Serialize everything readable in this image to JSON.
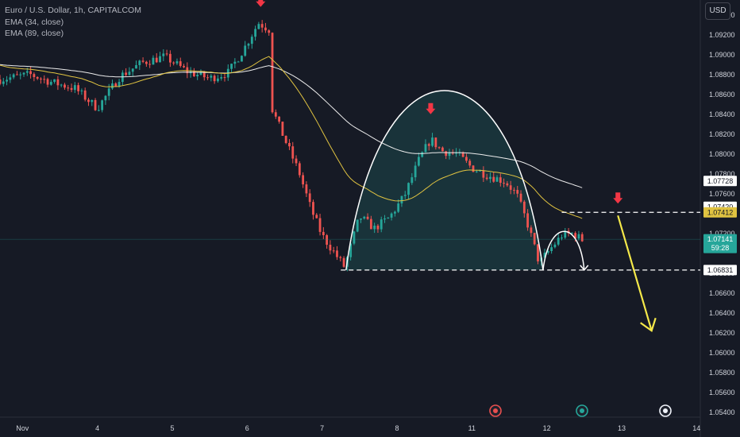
{
  "legend": {
    "title": "Euro / U.S. Dollar, 1h, CAPITALCOM",
    "ema1": "EMA (34, close)",
    "ema2": "EMA (89, close)"
  },
  "currency_button": "USD",
  "colors": {
    "up": "#26a69a",
    "down": "#ef5350",
    "ema34": "#e0c341",
    "ema89": "#ececec",
    "arrow_marker": "#f23645",
    "projection": "#f5e94a",
    "pattern_fill": "#1a3a40",
    "last_price": "#26a69a"
  },
  "price_tags": {
    "ema89": "1.07728",
    "ema34": "1.07420",
    "resistance": "1.07412",
    "last_price": "1.07141",
    "countdown": "59:28",
    "support": "1.06831"
  },
  "chart_data": {
    "type": "candlestick",
    "title": "Euro / U.S. Dollar, 1h, CAPITALCOM",
    "currency": "USD",
    "y_ticks": [
      "1.09400",
      "1.09200",
      "1.09000",
      "1.08800",
      "1.08600",
      "1.08400",
      "1.08200",
      "1.08000",
      "1.07800",
      "1.07600",
      "1.07200",
      "1.06800",
      "1.06600",
      "1.06400",
      "1.06200",
      "1.06000",
      "1.05800",
      "1.05600",
      "1.05400"
    ],
    "ylim": [
      1.0535,
      1.0955
    ],
    "x_ticks": [
      {
        "label": "Nov",
        "day": 3.0
      },
      {
        "label": "4",
        "day": 4.0
      },
      {
        "label": "5",
        "day": 5.0
      },
      {
        "label": "6",
        "day": 6.0
      },
      {
        "label": "7",
        "day": 7.0
      },
      {
        "label": "8",
        "day": 8.0
      },
      {
        "label": "11",
        "day": 9.0
      },
      {
        "label": "12",
        "day": 10.0
      },
      {
        "label": "13",
        "day": 11.0
      },
      {
        "label": "14",
        "day": 12.0
      }
    ],
    "xlim": [
      2.7,
      12.05
    ],
    "key_levels": {
      "resistance": 1.07412,
      "support": 1.06831,
      "last_price": 1.07141
    },
    "ema34_end": 1.0742,
    "ema89_end": 1.07728
  }
}
